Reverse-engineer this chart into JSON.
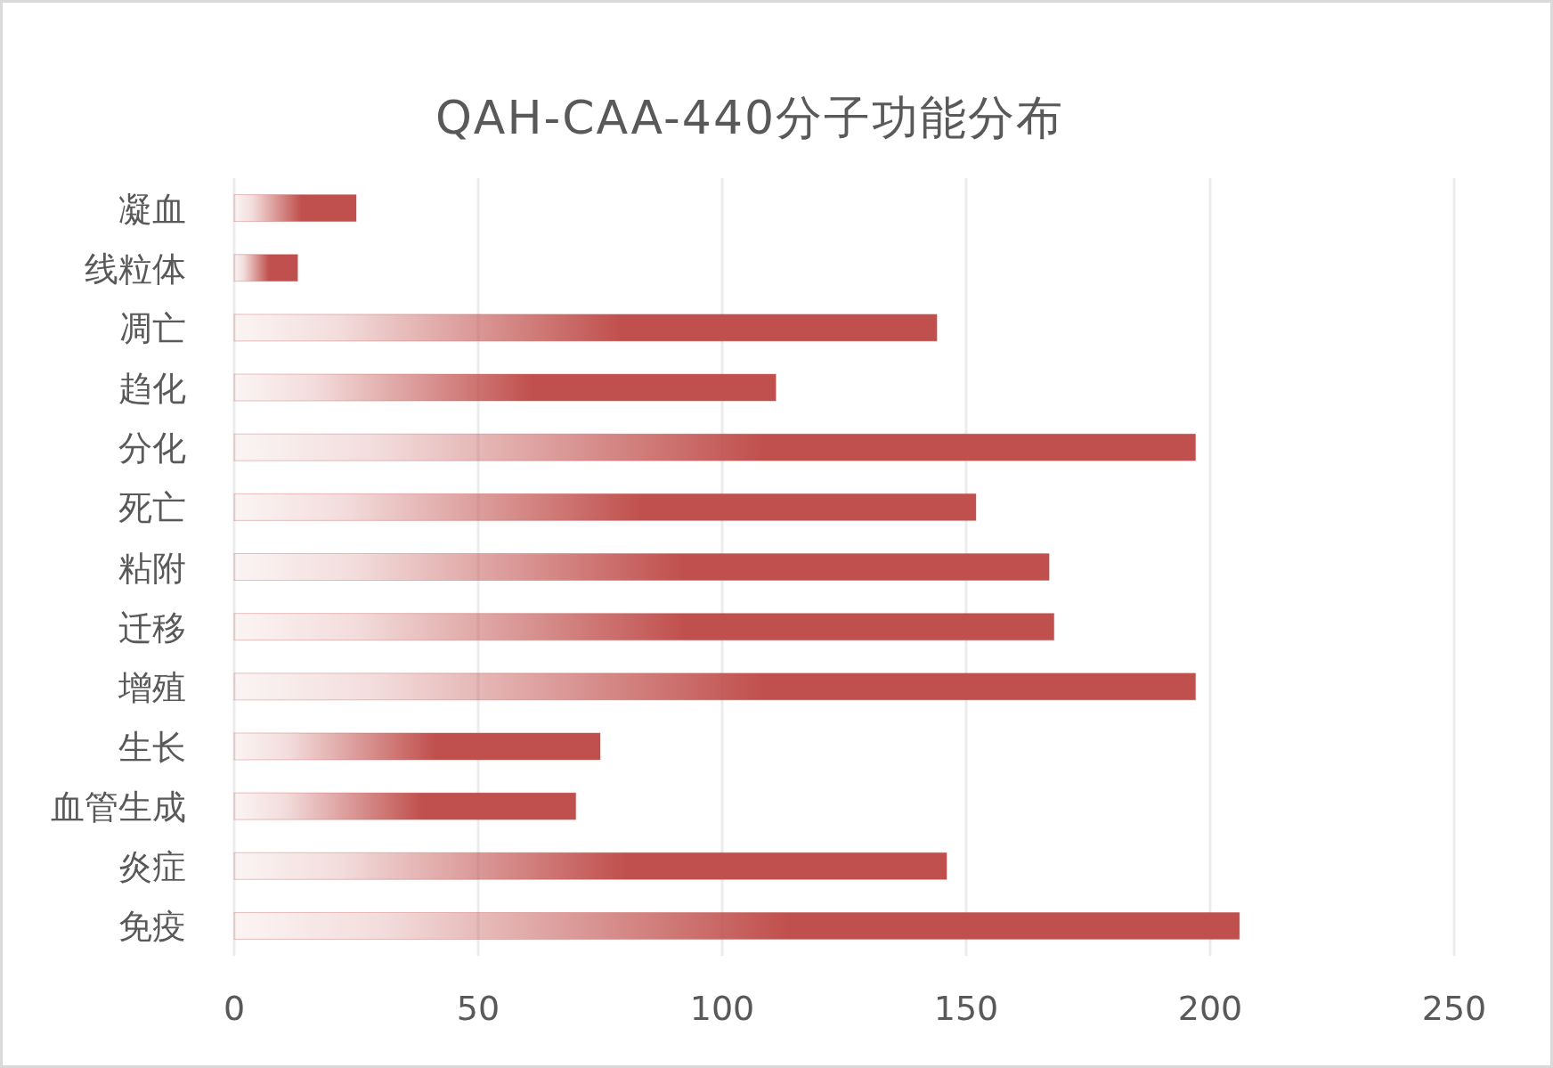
{
  "chart_data": {
    "type": "bar",
    "orientation": "horizontal",
    "title": "QAH-CAA-440分子功能分布",
    "categories": [
      "凝血",
      "线粒体",
      "凋亡",
      "趋化",
      "分化",
      "死亡",
      "粘附",
      "迁移",
      "增殖",
      "生长",
      "血管生成",
      "炎症",
      "免疫"
    ],
    "values": [
      25,
      13,
      144,
      111,
      197,
      152,
      167,
      168,
      197,
      75,
      70,
      146,
      206
    ],
    "color": "#c0504d",
    "xlim": [
      0,
      250
    ],
    "xticks": [
      0,
      50,
      100,
      150,
      200,
      250
    ],
    "grid": "x"
  }
}
